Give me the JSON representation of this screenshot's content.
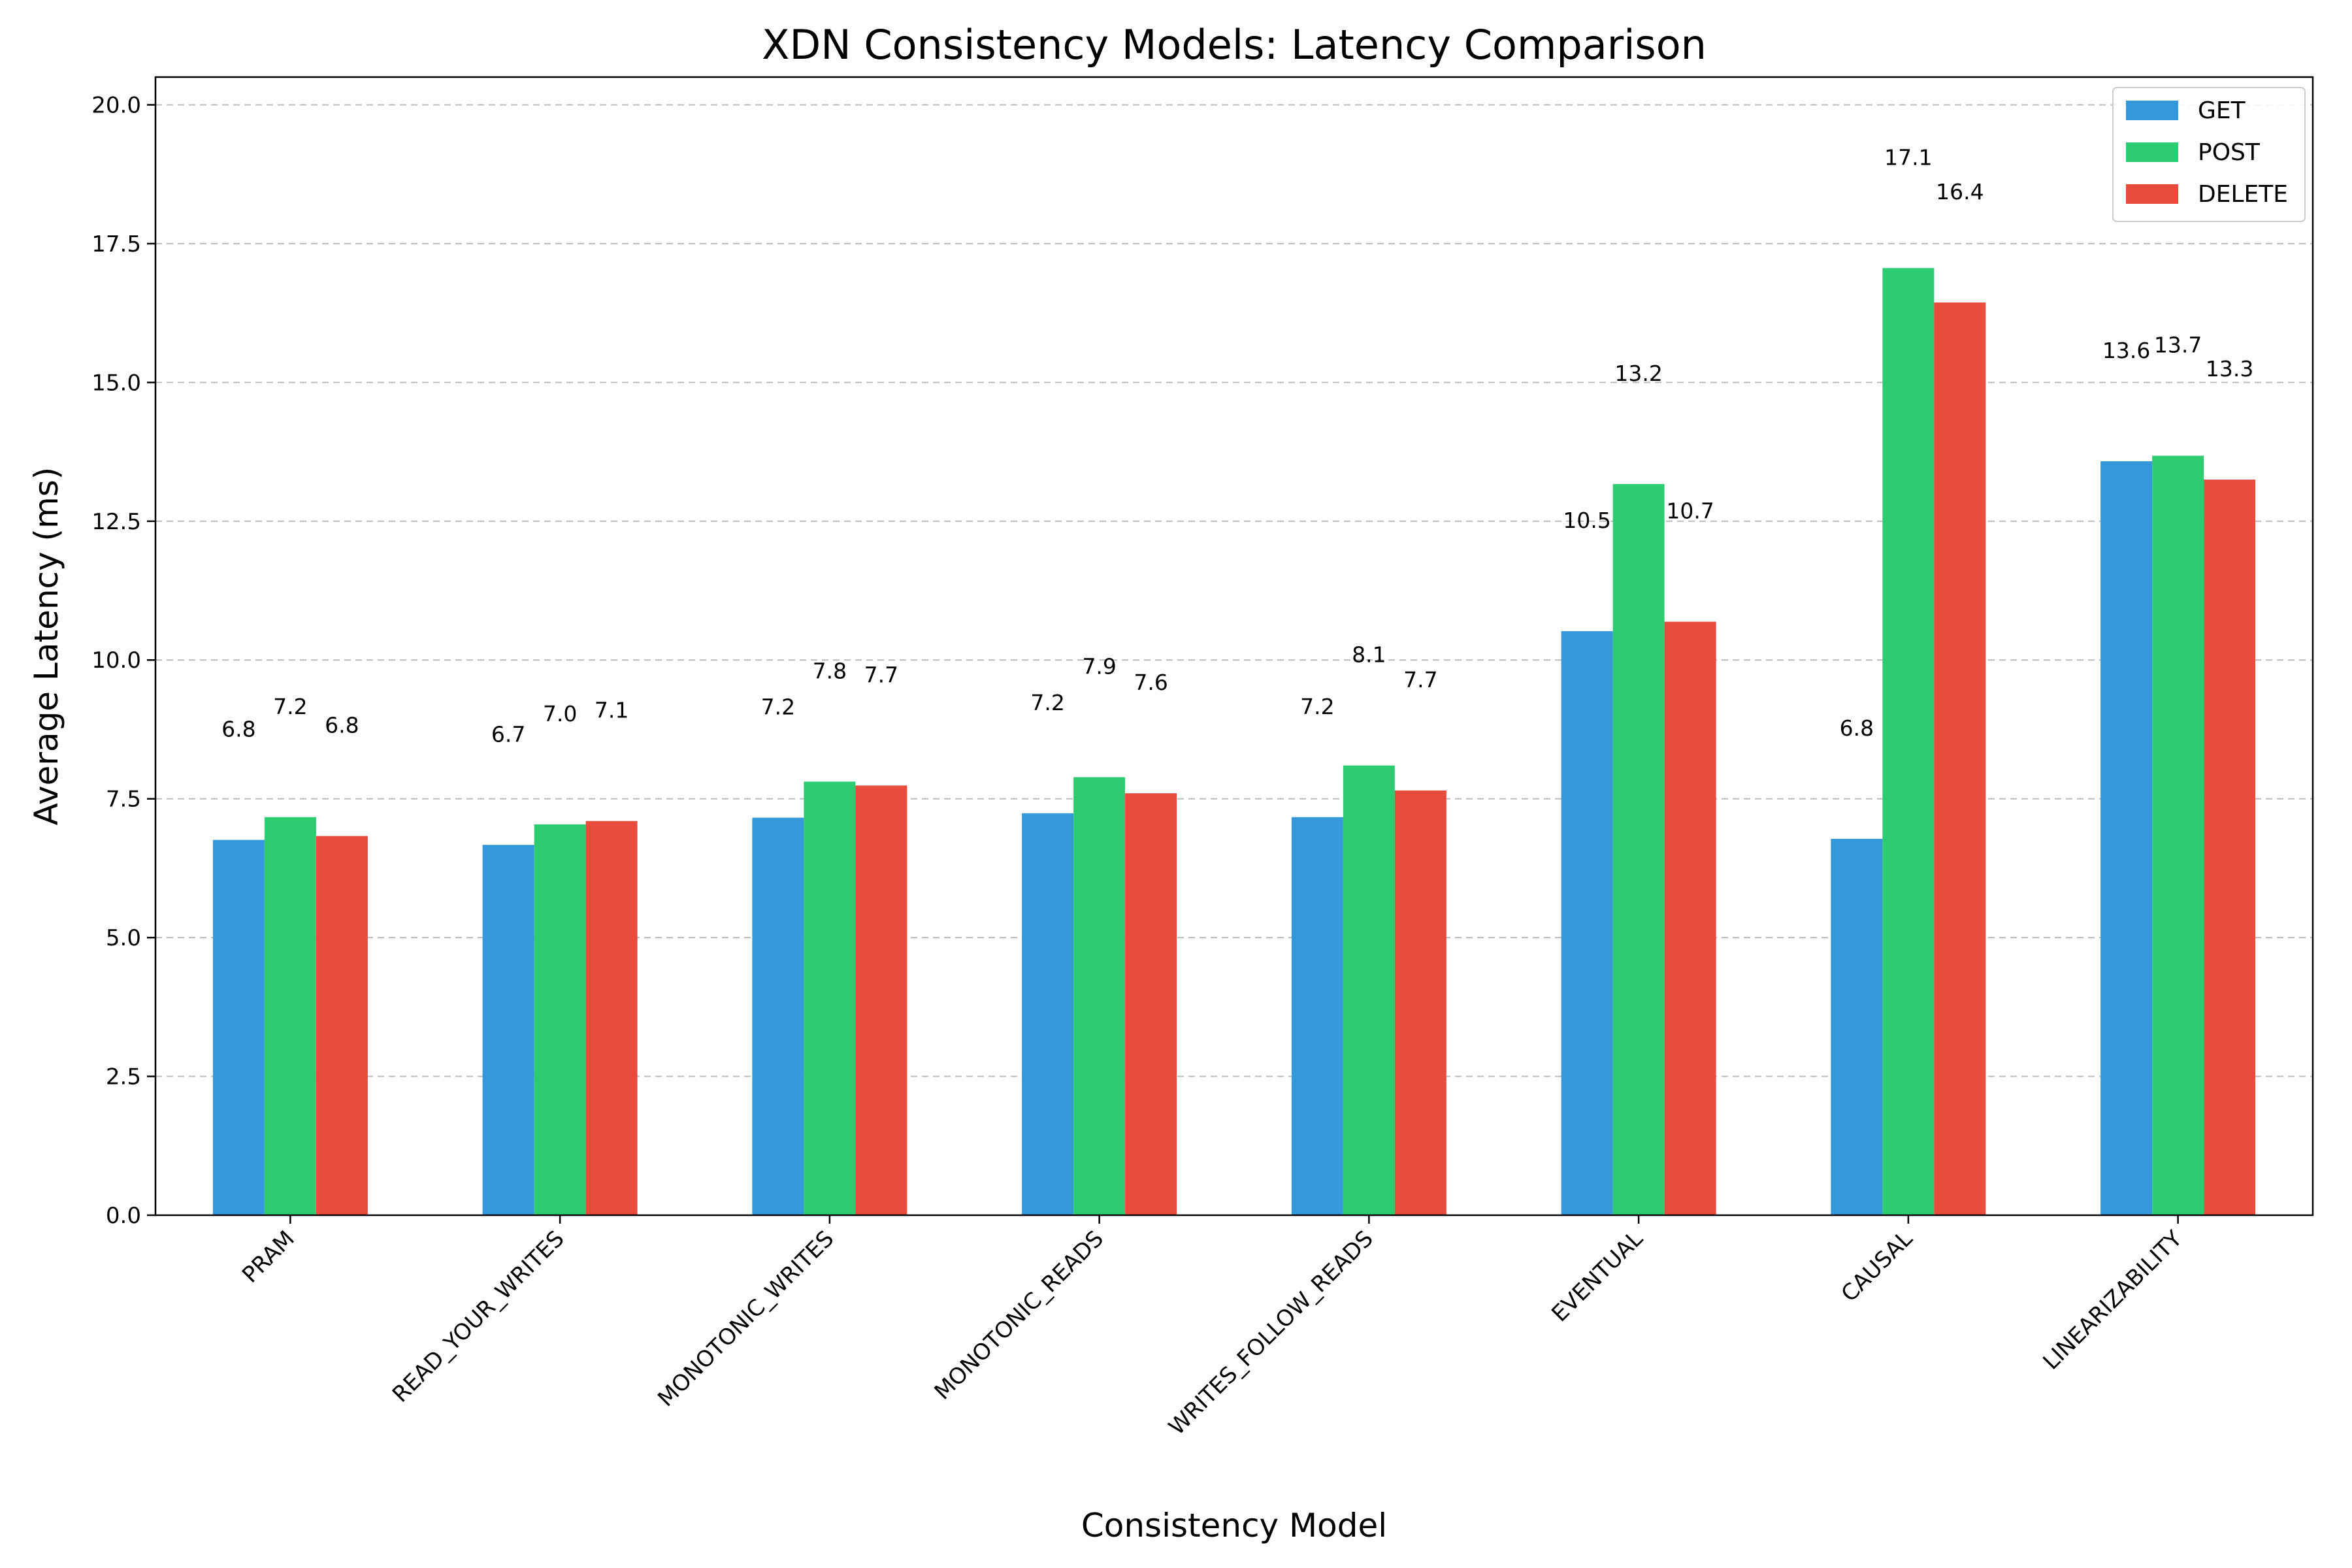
{
  "chart_data": {
    "type": "bar",
    "title": "XDN Consistency Models: Latency Comparison",
    "xlabel": "Consistency Model",
    "ylabel": "Average Latency (ms)",
    "ylim": [
      0,
      20.5
    ],
    "yticks": [
      0.0,
      2.5,
      5.0,
      7.5,
      10.0,
      12.5,
      15.0,
      17.5,
      20.0
    ],
    "ytick_labels": [
      "0.0",
      "2.5",
      "5.0",
      "7.5",
      "10.0",
      "12.5",
      "15.0",
      "17.5",
      "20.0"
    ],
    "grid": "y-dashed",
    "legend_position": "top-right",
    "categories": [
      "PRAM",
      "READ_YOUR_WRITES",
      "MONOTONIC_WRITES",
      "MONOTONIC_READS",
      "WRITES_FOLLOW_READS",
      "EVENTUAL",
      "CAUSAL",
      "LINEARIZABILITY"
    ],
    "series": [
      {
        "name": "GET",
        "color": "#3498db",
        "values": [
          6.76,
          6.67,
          7.16,
          7.24,
          7.17,
          10.52,
          6.78,
          13.58
        ],
        "labels": [
          "6.8",
          "6.7",
          "7.2",
          "7.2",
          "7.2",
          "10.5",
          "6.8",
          "13.6"
        ]
      },
      {
        "name": "POST",
        "color": "#2ecc71",
        "values": [
          7.17,
          7.04,
          7.81,
          7.89,
          8.1,
          13.17,
          17.06,
          13.68
        ],
        "labels": [
          "7.2",
          "7.0",
          "7.8",
          "7.9",
          "8.1",
          "13.2",
          "17.1",
          "13.7"
        ]
      },
      {
        "name": "DELETE",
        "color": "#e74c3c",
        "values": [
          6.83,
          7.1,
          7.74,
          7.6,
          7.65,
          10.69,
          16.44,
          13.25
        ],
        "labels": [
          "6.8",
          "7.1",
          "7.7",
          "7.6",
          "7.7",
          "10.7",
          "16.4",
          "13.3"
        ]
      }
    ]
  }
}
